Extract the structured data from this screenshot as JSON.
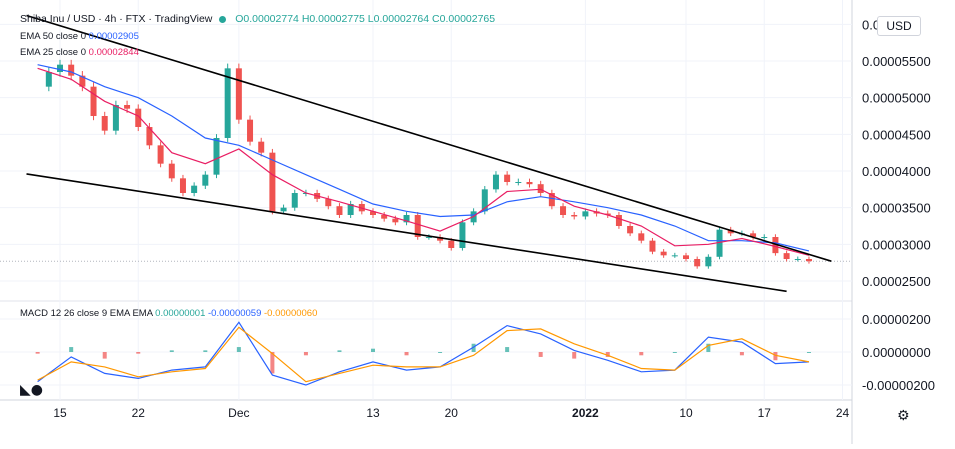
{
  "header": {
    "symbol": "Shiba Inu / USD · 4h · FTX · TradingView",
    "o": "O0.00002774",
    "h": "H0.00002775",
    "l": "L0.00002764",
    "c": "C0.00002765",
    "status_color": "#26a69a"
  },
  "indicators": {
    "ema50_label": "EMA 50 close 0",
    "ema50_value": "0.00002905",
    "ema50_color": "#2962ff",
    "ema25_label": "EMA 25 close 0",
    "ema25_value": "0.00002844",
    "ema25_color": "#e91e63",
    "macd_label": "MACD 12 26 close 9 EMA EMA",
    "macd_hist": "0.00000001",
    "macd_line": "-0.00000059",
    "macd_signal": "-0.00000060"
  },
  "currency_badge": "USD",
  "settings_icon": "gear-icon",
  "logo_icon": "tradingview-logo-icon",
  "chart_data": [
    {
      "type": "line",
      "title": "Shiba Inu / USD · 4h · FTX · TradingView",
      "description_series": [
        "price",
        "EMA 50",
        "EMA 25",
        "Trendline upper",
        "Trendline lower"
      ],
      "x_tick_labels": [
        "15",
        "22",
        "Dec",
        "13",
        "20",
        "2022",
        "10",
        "17",
        "24"
      ],
      "y_tick_labels": [
        "0.0",
        "0.00005500",
        "0.00005000",
        "0.00004500",
        "0.00004000",
        "0.00003500",
        "0.00003000",
        "0.00002500"
      ],
      "y_ticks": [
        6e-05,
        5.5e-05,
        5e-05,
        4.5e-05,
        4e-05,
        3.5e-05,
        3e-05,
        2.5e-05
      ],
      "ylim": [
        2.1e-05,
        6.12e-05
      ],
      "series": [
        {
          "name": "price",
          "color": "#26a69a",
          "x": [
            "Nov 13",
            "Nov 14",
            "Nov 15",
            "Nov 16",
            "Nov 17",
            "Nov 18",
            "Nov 19",
            "Nov 20",
            "Nov 21",
            "Nov 22",
            "Nov 23",
            "Nov 24",
            "Nov 25",
            "Nov 26",
            "Nov 27",
            "Nov 28",
            "Nov 29",
            "Nov 30",
            "Dec 1",
            "Dec 2",
            "Dec 3",
            "Dec 4",
            "Dec 5",
            "Dec 6",
            "Dec 7",
            "Dec 8",
            "Dec 9",
            "Dec 10",
            "Dec 11",
            "Dec 12",
            "Dec 13",
            "Dec 14",
            "Dec 15",
            "Dec 16",
            "Dec 17",
            "Dec 18",
            "Dec 19",
            "Dec 20",
            "Dec 21",
            "Dec 22",
            "Dec 23",
            "Dec 24",
            "Dec 25",
            "Dec 26",
            "Dec 27",
            "Dec 28",
            "Dec 29",
            "Dec 30",
            "Dec 31",
            "Jan 1",
            "Jan 2",
            "Jan 3",
            "Jan 4",
            "Jan 5",
            "Jan 6",
            "Jan 7",
            "Jan 8",
            "Jan 9",
            "Jan 10",
            "Jan 11",
            "Jan 12",
            "Jan 13",
            "Jan 14",
            "Jan 15",
            "Jan 16",
            "Jan 17",
            "Jan 18",
            "Jan 19",
            "Jan 20",
            "Jan 21"
          ],
          "values": [
            5.15e-05,
            5.35e-05,
            5.45e-05,
            5.3e-05,
            5.15e-05,
            4.75e-05,
            4.55e-05,
            4.9e-05,
            4.85e-05,
            4.6e-05,
            4.35e-05,
            4.1e-05,
            3.9e-05,
            3.7e-05,
            3.8e-05,
            3.95e-05,
            4.45e-05,
            5.4e-05,
            4.7e-05,
            4.4e-05,
            4.25e-05,
            3.45e-05,
            3.5e-05,
            3.7e-05,
            3.7e-05,
            3.62e-05,
            3.52e-05,
            3.4e-05,
            3.55e-05,
            3.45e-05,
            3.4e-05,
            3.35e-05,
            3.3e-05,
            3.4e-05,
            3.1e-05,
            3.1e-05,
            3.05e-05,
            2.95e-05,
            3.3e-05,
            3.45e-05,
            3.75e-05,
            3.95e-05,
            3.85e-05,
            3.85e-05,
            3.82e-05,
            3.7e-05,
            3.52e-05,
            3.4e-05,
            3.38e-05,
            3.45e-05,
            3.42e-05,
            3.4e-05,
            3.25e-05,
            3.15e-05,
            3.05e-05,
            2.9e-05,
            2.85e-05,
            2.85e-05,
            2.8e-05,
            2.7e-05,
            2.83e-05,
            3.2e-05,
            3.15e-05,
            3.15e-05,
            3.1e-05,
            3.1e-05,
            2.88e-05,
            2.8e-05,
            2.8e-05,
            2.77e-05
          ]
        },
        {
          "name": "EMA 50",
          "color": "#2962ff",
          "x": [
            "Nov 13",
            "Nov 16",
            "Nov 19",
            "Nov 22",
            "Nov 25",
            "Nov 28",
            "Dec 1",
            "Dec 4",
            "Dec 7",
            "Dec 10",
            "Dec 13",
            "Dec 16",
            "Dec 19",
            "Dec 22",
            "Dec 25",
            "Dec 28",
            "Dec 31",
            "Jan 3",
            "Jan 6",
            "Jan 9",
            "Jan 12",
            "Jan 15",
            "Jan 18",
            "Jan 21"
          ],
          "values": [
            5.45e-05,
            5.35e-05,
            5.15e-05,
            5e-05,
            4.75e-05,
            4.45e-05,
            4.35e-05,
            4.15e-05,
            3.95e-05,
            3.75e-05,
            3.55e-05,
            3.45e-05,
            3.38e-05,
            3.4e-05,
            3.58e-05,
            3.65e-05,
            3.58e-05,
            3.5e-05,
            3.4e-05,
            3.25e-05,
            3.05e-05,
            3.05e-05,
            3.02e-05,
            2.91e-05
          ]
        },
        {
          "name": "EMA 25",
          "color": "#e91e63",
          "x": [
            "Nov 13",
            "Nov 16",
            "Nov 19",
            "Nov 22",
            "Nov 25",
            "Nov 28",
            "Dec 1",
            "Dec 4",
            "Dec 7",
            "Dec 10",
            "Dec 13",
            "Dec 16",
            "Dec 19",
            "Dec 22",
            "Dec 25",
            "Dec 28",
            "Dec 31",
            "Jan 3",
            "Jan 6",
            "Jan 9",
            "Jan 12",
            "Jan 15",
            "Jan 18",
            "Jan 21"
          ],
          "values": [
            5.4e-05,
            5.25e-05,
            4.95e-05,
            4.75e-05,
            4.25e-05,
            4.1e-05,
            4.3e-05,
            3.95e-05,
            3.7e-05,
            3.58e-05,
            3.45e-05,
            3.32e-05,
            3.18e-05,
            3.38e-05,
            3.72e-05,
            3.75e-05,
            3.52e-05,
            3.4e-05,
            3.25e-05,
            2.98e-05,
            3e-05,
            3.08e-05,
            2.97e-05,
            2.85e-05
          ]
        },
        {
          "name": "Trendline upper",
          "color": "#000000",
          "x": [
            "Nov 12",
            "Jan 23"
          ],
          "values": [
            6.12e-05,
            2.77e-05
          ]
        },
        {
          "name": "Trendline lower",
          "color": "#000000",
          "x": [
            "Nov 12",
            "Jan 19"
          ],
          "values": [
            3.96e-05,
            2.36e-05
          ]
        }
      ],
      "current_price_line": 2.77e-05
    },
    {
      "type": "bar",
      "title": "MACD 12 26 close 9 EMA EMA",
      "y_tick_labels": [
        "0.00000200",
        "0.00000000",
        "-0.00000200"
      ],
      "y_ticks": [
        2e-06,
        0.0,
        -2e-06
      ],
      "ylim": [
        -2.4e-06,
        2.5e-06
      ],
      "x": [
        "Nov 13",
        "Nov 16",
        "Nov 19",
        "Nov 22",
        "Nov 25",
        "Nov 28",
        "Dec 1",
        "Dec 4",
        "Dec 7",
        "Dec 10",
        "Dec 13",
        "Dec 16",
        "Dec 19",
        "Dec 22",
        "Dec 25",
        "Dec 28",
        "Dec 31",
        "Jan 3",
        "Jan 6",
        "Jan 9",
        "Jan 12",
        "Jan 15",
        "Jan 18",
        "Jan 21"
      ],
      "series": [
        {
          "name": "MACD",
          "color": "#2962ff",
          "values": [
            -1.8e-06,
            -3e-07,
            -1.3e-06,
            -1.6e-06,
            -1.1e-06,
            -9e-07,
            1.8e-06,
            -1.4e-06,
            -2e-06,
            -1.2e-06,
            -6e-07,
            -1.1e-06,
            -9e-07,
            3e-07,
            1.6e-06,
            1.1e-06,
            1e-07,
            -5e-07,
            -1.2e-06,
            -1.1e-06,
            9e-07,
            6e-07,
            -7e-07,
            -6e-07
          ]
        },
        {
          "name": "Signal",
          "color": "#ff9800",
          "values": [
            -1.7e-06,
            -6e-07,
            -9e-07,
            -1.5e-06,
            -1.2e-06,
            -1e-06,
            1.5e-06,
            -1e-07,
            -1.8e-06,
            -1.3e-06,
            -8e-07,
            -9e-07,
            -9e-07,
            -2e-07,
            1.3e-06,
            1.4e-06,
            5e-07,
            -2e-07,
            -1e-06,
            -1.1e-06,
            4e-07,
            8e-07,
            -2e-07,
            -6e-07
          ]
        },
        {
          "name": "Histogram",
          "color": "#26a69a",
          "values": [
            -1e-07,
            3e-07,
            -4e-07,
            -1e-07,
            1e-07,
            1e-07,
            3e-07,
            -1.3e-06,
            -2e-07,
            1e-07,
            2e-07,
            -2e-07,
            0.0,
            5e-07,
            3e-07,
            -3e-07,
            -4e-07,
            -3e-07,
            -2e-07,
            0.0,
            5e-07,
            -2e-07,
            -5e-07,
            0.0
          ]
        }
      ]
    }
  ]
}
